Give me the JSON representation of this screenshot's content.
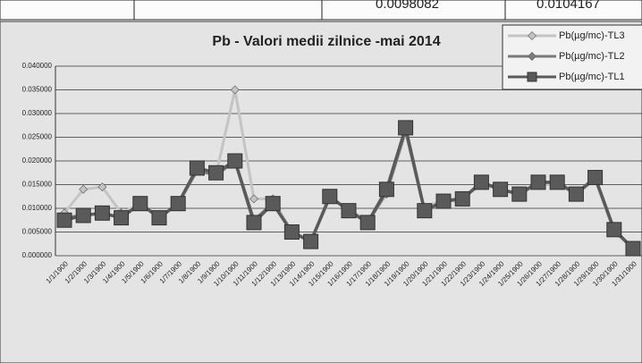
{
  "header_cells": [
    "0.0098082",
    "0.0104167"
  ],
  "chart_data": {
    "type": "line",
    "title": "Pb - Valori medii zilnice -mai 2014",
    "categories": [
      "1/1/1900",
      "1/2/1900",
      "1/3/1900",
      "1/4/1900",
      "1/5/1900",
      "1/6/1900",
      "1/7/1900",
      "1/8/1900",
      "1/9/1900",
      "1/10/1900",
      "1/11/1900",
      "1/12/1900",
      "1/13/1900",
      "1/14/1900",
      "1/15/1900",
      "1/16/1900",
      "1/17/1900",
      "1/18/1900",
      "1/19/1900",
      "1/20/1900",
      "1/21/1900",
      "1/22/1900",
      "1/23/1900",
      "1/24/1900",
      "1/25/1900",
      "1/26/1900",
      "1/27/1900",
      "1/28/1900",
      "1/29/1900",
      "1/30/1900",
      "1/31/1900"
    ],
    "series": [
      {
        "name": "Pb(µg/mc)-TL3",
        "color": "#c4c4c4",
        "marker": "diamond",
        "values": [
          0.009,
          0.014,
          0.0145,
          0.009,
          0.011,
          0.008,
          0.011,
          0.018,
          0.017,
          0.035,
          0.012,
          0.012,
          0.005,
          0.003,
          0.012,
          0.01,
          0.007,
          0.013,
          0.026,
          0.01,
          0.012,
          0.012,
          0.015,
          0.014,
          0.013,
          0.015,
          0.015,
          0.013,
          0.016,
          0.005,
          0.0015
        ]
      },
      {
        "name": "Pb(µg/mc)-TL2",
        "color": "#7a7a7a",
        "marker": "diamond",
        "values": [
          0.008,
          0.0085,
          0.009,
          0.008,
          0.011,
          0.008,
          0.011,
          0.018,
          0.017,
          0.02,
          0.0075,
          0.011,
          0.005,
          0.003,
          0.0125,
          0.0095,
          0.007,
          0.0135,
          0.0265,
          0.0095,
          0.0115,
          0.012,
          0.0155,
          0.014,
          0.013,
          0.0155,
          0.0155,
          0.013,
          0.0165,
          0.0055,
          0.0015
        ]
      },
      {
        "name": "Pb(µg/mc)-TL1",
        "color": "#5a5a5a",
        "marker": "square",
        "values": [
          0.0075,
          0.0085,
          0.009,
          0.008,
          0.011,
          0.008,
          0.011,
          0.0185,
          0.0175,
          0.02,
          0.007,
          0.011,
          0.005,
          0.003,
          0.0125,
          0.0095,
          0.007,
          0.014,
          0.027,
          0.0095,
          0.0115,
          0.012,
          0.0155,
          0.014,
          0.013,
          0.0155,
          0.0155,
          0.013,
          0.0165,
          0.0055,
          0.0015
        ]
      }
    ],
    "ylim": [
      0,
      0.04
    ],
    "yticks": [
      {
        "value": 0,
        "label": "0.000000"
      },
      {
        "value": 0.005,
        "label": "0.005000"
      },
      {
        "value": 0.01,
        "label": "0.010000"
      },
      {
        "value": 0.015,
        "label": "0.015000"
      },
      {
        "value": 0.02,
        "label": "0.020000"
      },
      {
        "value": 0.025,
        "label": "0.025000"
      },
      {
        "value": 0.03,
        "label": "0.030000"
      },
      {
        "value": 0.035,
        "label": "0.035000"
      },
      {
        "value": 0.04,
        "label": "0.040000"
      }
    ],
    "grid": true,
    "legend": "top-right"
  }
}
